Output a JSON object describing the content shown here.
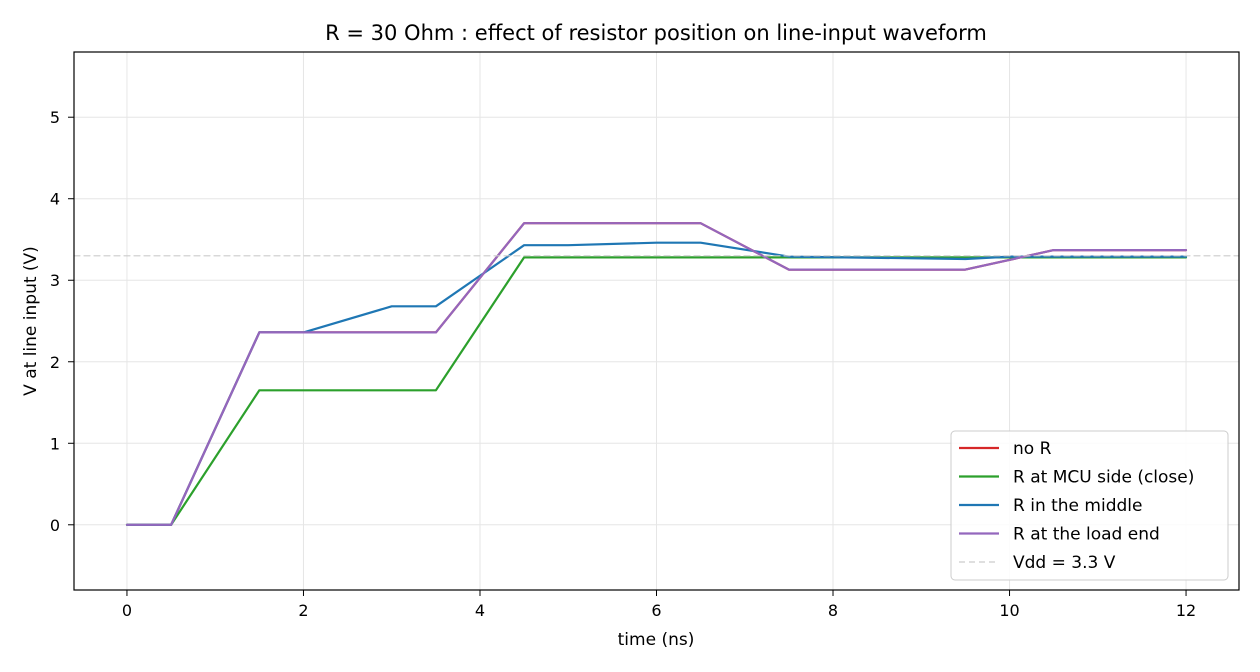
{
  "chart_data": {
    "type": "line",
    "title": "R = 30 Ohm : effect of resistor position on line-input waveform",
    "xlabel": "time (ns)",
    "ylabel": "V at line input (V)",
    "xlim": [
      -0.6,
      12.6
    ],
    "ylim": [
      -0.8,
      5.8
    ],
    "xticks": [
      0,
      2,
      4,
      6,
      8,
      10,
      12
    ],
    "yticks": [
      0,
      1,
      2,
      3,
      4,
      5
    ],
    "grid": true,
    "legend_position": "lower-right",
    "series": [
      {
        "name": "no R",
        "color": "#d62728",
        "dashed": false,
        "x": [
          0,
          0.5,
          1.5,
          3.5,
          4.5,
          6.5,
          7.5,
          9.5,
          10.5,
          12
        ],
        "y": [
          0,
          0,
          2.36,
          2.36,
          3.7,
          3.7,
          3.13,
          3.13,
          3.37,
          3.37
        ]
      },
      {
        "name": "R at MCU side (close)",
        "color": "#2ca02c",
        "dashed": false,
        "x": [
          0,
          0.5,
          1.5,
          3.5,
          4.5,
          6.5,
          7.5,
          9.5,
          10.5,
          12
        ],
        "y": [
          0,
          0,
          1.65,
          1.65,
          3.28,
          3.28,
          3.28,
          3.28,
          3.28,
          3.28
        ]
      },
      {
        "name": "R in the middle",
        "color": "#1f77b4",
        "dashed": false,
        "x": [
          0,
          0.5,
          1.5,
          2,
          3,
          3.5,
          4.5,
          5,
          6,
          6.5,
          7.5,
          9.5,
          10,
          12
        ],
        "y": [
          0,
          0,
          2.36,
          2.36,
          2.68,
          2.68,
          3.43,
          3.43,
          3.46,
          3.46,
          3.29,
          3.26,
          3.29,
          3.29
        ]
      },
      {
        "name": "R at the load end",
        "color": "#9467bd",
        "dashed": false,
        "x": [
          0,
          0.5,
          1.5,
          3.5,
          4.5,
          6.5,
          7.5,
          9.5,
          10.5,
          12
        ],
        "y": [
          0,
          0,
          2.36,
          2.36,
          3.7,
          3.7,
          3.13,
          3.13,
          3.37,
          3.37
        ]
      },
      {
        "name": "Vdd = 3.3 V",
        "color": "#cccccc",
        "dashed": true,
        "x": [
          -0.6,
          12.6
        ],
        "y": [
          3.3,
          3.3
        ]
      }
    ]
  }
}
